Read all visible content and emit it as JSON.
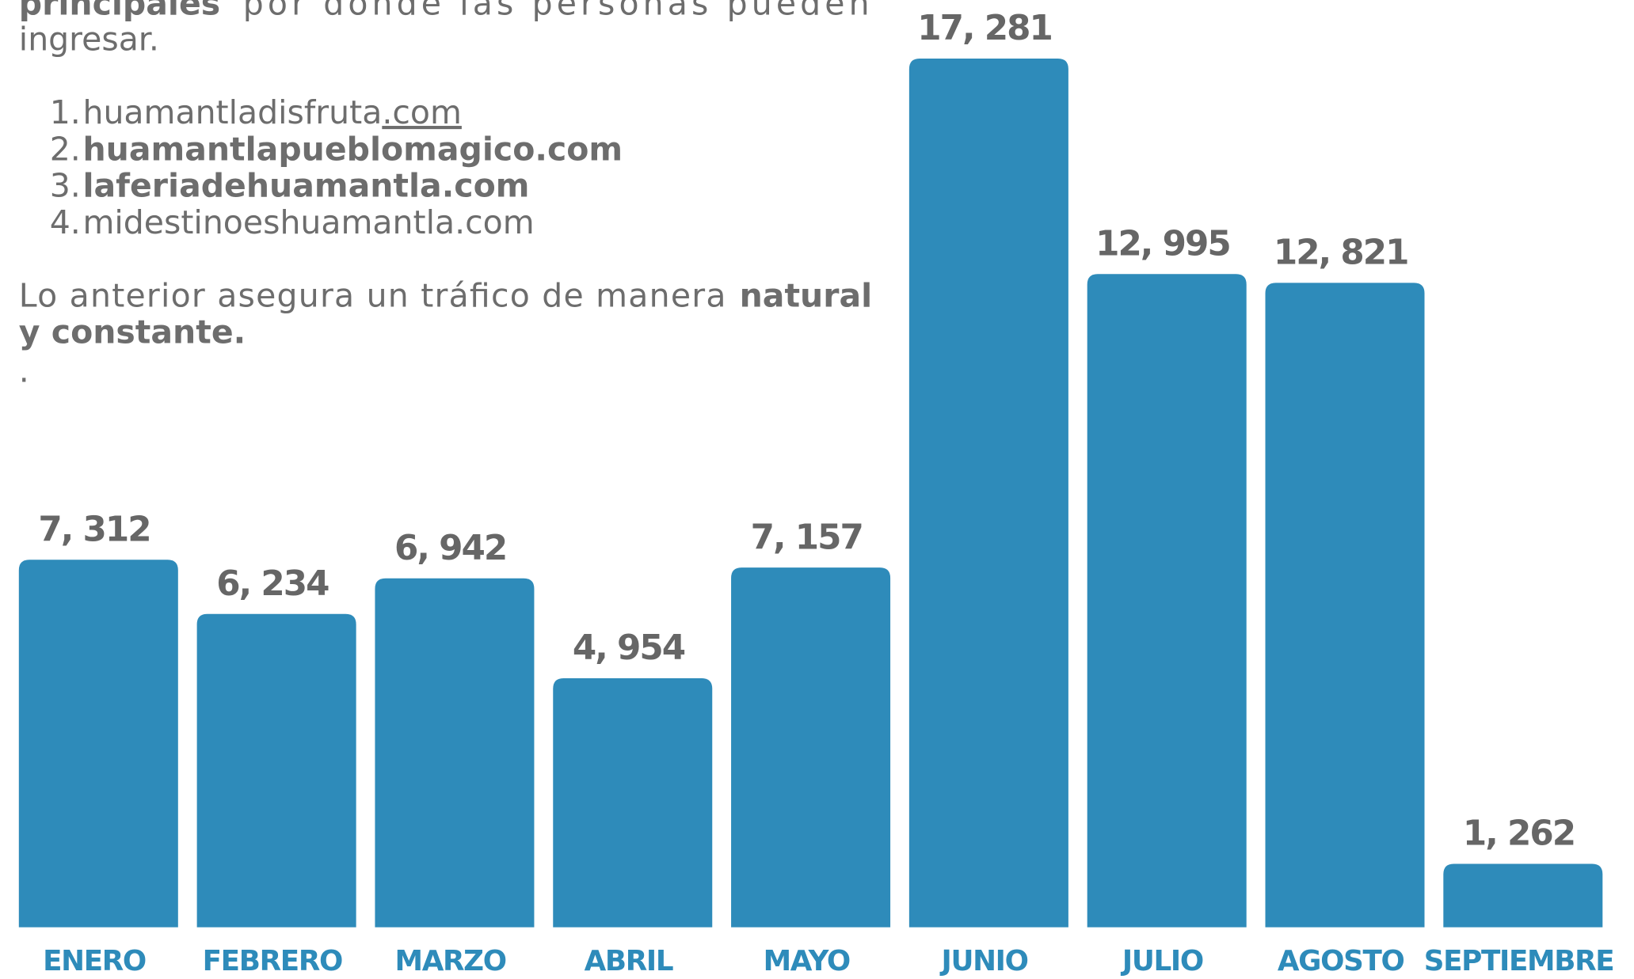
{
  "text": {
    "intro_bold": "principales",
    "intro_rest": "por donde las personas pueden",
    "intro_end": "ingresar.",
    "list": [
      {
        "number": "1.",
        "text": "huamantladisfruta",
        "suffix": ".com"
      },
      {
        "number": "2.",
        "text": "huamantlapueblomagico.com"
      },
      {
        "number": "3.",
        "text": "laferiadehuamantla.com"
      },
      {
        "number": "4.",
        "text": "midestinoeshuamantla.com"
      }
    ],
    "closing": "Lo anterior asegura un tráfico de manera",
    "closing_bold_1": "natural",
    "closing_bold_2": "y constante.",
    "dot": "."
  },
  "chart_data": {
    "type": "bar",
    "categories": [
      "ENERO",
      "FEBRERO",
      "MARZO",
      "ABRIL",
      "MAYO",
      "JUNIO",
      "JULIO",
      "AGOSTO",
      "SEPTIEMBRE"
    ],
    "values": [
      7312,
      6234,
      6942,
      4954,
      7157,
      17281,
      12995,
      12821,
      1262
    ],
    "value_labels": [
      "7, 312",
      "6, 234",
      "6, 942",
      "4, 954",
      "7, 157",
      "17, 281",
      "12, 995",
      "12, 821",
      "1, 262"
    ],
    "color": "#2e8bba",
    "ylim": [
      0,
      18000
    ]
  }
}
